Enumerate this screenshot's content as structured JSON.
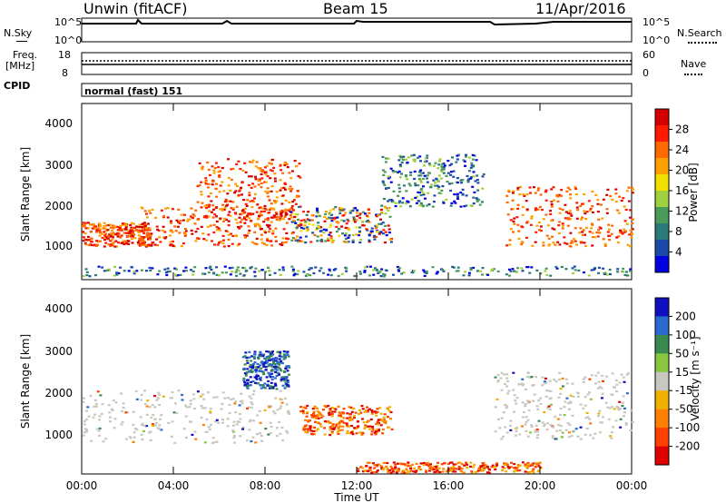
{
  "header": {
    "station": "Unwin (fitACF)",
    "beam": "Beam 15",
    "date": "11/Apr/2016"
  },
  "top_panels": {
    "nsky_label": "N.Sky",
    "nsky_ticks": [
      "10^5",
      "10^0"
    ],
    "nsearch_label": "N.Search",
    "nsearch_ticks": [
      "10^5",
      "10^0"
    ],
    "freq_label": "Freq.",
    "freq_unit": "[MHz]",
    "freq_ticks": [
      "18",
      "8"
    ],
    "nave_label": "Nave",
    "nave_ticks": [
      "60",
      "0"
    ],
    "cpid_label": "CPID",
    "cpid_value": "normal (fast) 151"
  },
  "chart_data": [
    {
      "type": "heatmap",
      "name": "power",
      "ylabel": "Slant Range [km]",
      "ylim": [
        180,
        4600
      ],
      "yticks": [
        "4000",
        "3000",
        "2000",
        "1000"
      ],
      "colorbar_label": "Power [dB]",
      "colorbar_ticks": [
        "28",
        "24",
        "20",
        "16",
        "12",
        "8",
        "4"
      ],
      "colorbar_colors": [
        "#d40000",
        "#ff1a00",
        "#ff6a00",
        "#ffa000",
        "#f0e000",
        "#9fd040",
        "#4a9a5a",
        "#2a7a7a",
        "#1a4aa8",
        "#0000e0"
      ],
      "echo_regions": [
        {
          "t": [
            0.0,
            3.0
          ],
          "r": [
            1000,
            1600
          ],
          "level": "high"
        },
        {
          "t": [
            2.5,
            9.0
          ],
          "r": [
            1000,
            2000
          ],
          "level": "high"
        },
        {
          "t": [
            5.0,
            9.5
          ],
          "r": [
            1700,
            3200
          ],
          "level": "high"
        },
        {
          "t": [
            9.0,
            13.5
          ],
          "r": [
            1100,
            2000
          ],
          "level": "mixed"
        },
        {
          "t": [
            13.0,
            17.5
          ],
          "r": [
            2000,
            3300
          ],
          "level": "low"
        },
        {
          "t": [
            18.5,
            24.0
          ],
          "r": [
            1000,
            2500
          ],
          "level": "high"
        },
        {
          "t": [
            0.0,
            24.0
          ],
          "r": [
            250,
            500
          ],
          "level": "low"
        }
      ]
    },
    {
      "type": "heatmap",
      "name": "velocity",
      "ylabel": "Slant Range [km]",
      "ylim": [
        180,
        4600
      ],
      "yticks": [
        "4000",
        "3000",
        "2000",
        "1000"
      ],
      "colorbar_label": "Velocity [m s⁻¹]",
      "colorbar_ticks": [
        "200",
        "100",
        "50",
        "15",
        "-15",
        "-50",
        "-100",
        "-200"
      ],
      "colorbar_colors": [
        "#1010c0",
        "#2a6ad0",
        "#3a8a50",
        "#88c840",
        "#c8c8c0",
        "#f0b000",
        "#ff8000",
        "#ff4000",
        "#e00000"
      ],
      "echo_regions": [
        {
          "t": [
            0.0,
            9.0
          ],
          "r": [
            900,
            2200
          ],
          "level": "grey"
        },
        {
          "t": [
            9.5,
            13.5
          ],
          "r": [
            1100,
            1800
          ],
          "level": "negative"
        },
        {
          "t": [
            7.0,
            9.0
          ],
          "r": [
            2200,
            3100
          ],
          "level": "positive"
        },
        {
          "t": [
            18.0,
            24.0
          ],
          "r": [
            1000,
            2600
          ],
          "level": "grey"
        },
        {
          "t": [
            12.0,
            20.0
          ],
          "r": [
            200,
            450
          ],
          "level": "negative"
        }
      ]
    }
  ],
  "xaxis": {
    "label": "Time UT",
    "ticks": [
      "00:00",
      "04:00",
      "08:00",
      "12:00",
      "16:00",
      "20:00",
      "00:00"
    ]
  },
  "colors": {
    "grey": "#c8c8c0"
  }
}
